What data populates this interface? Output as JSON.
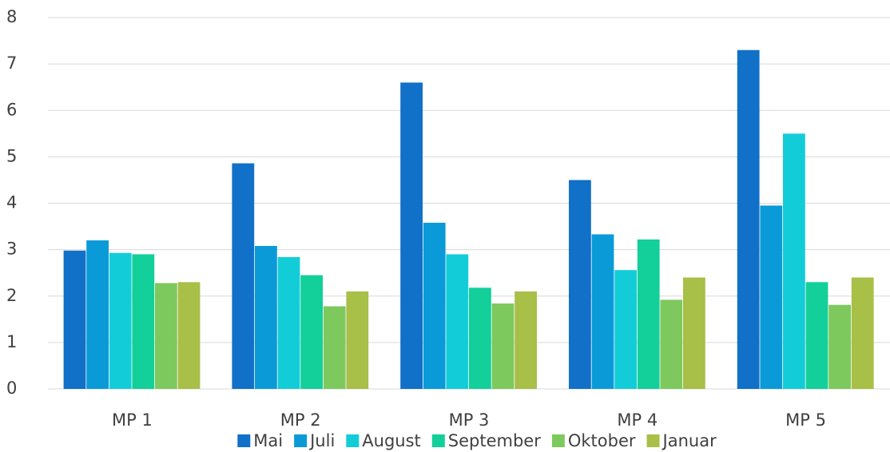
{
  "chart_data": {
    "type": "bar",
    "categories": [
      "MP 1",
      "MP 2",
      "MP 3",
      "MP 4",
      "MP 5"
    ],
    "series": [
      {
        "name": "Mai",
        "color": "#1170c8",
        "values": [
          2.98,
          4.86,
          6.6,
          4.5,
          7.3
        ]
      },
      {
        "name": "Juli",
        "color": "#0a9ad8",
        "values": [
          3.2,
          3.08,
          3.58,
          3.33,
          3.95
        ]
      },
      {
        "name": "August",
        "color": "#12cdd8",
        "values": [
          2.93,
          2.84,
          2.9,
          2.56,
          5.5
        ]
      },
      {
        "name": "September",
        "color": "#13cf9a",
        "values": [
          2.9,
          2.45,
          2.18,
          3.22,
          2.3
        ]
      },
      {
        "name": "Oktober",
        "color": "#7dc95e",
        "values": [
          2.28,
          1.78,
          1.84,
          1.92,
          1.81
        ]
      },
      {
        "name": "Januar",
        "color": "#a8bf48",
        "values": [
          2.3,
          2.1,
          2.1,
          2.4,
          2.4
        ]
      }
    ],
    "ylim": [
      0,
      8
    ],
    "yticks": [
      0,
      1,
      2,
      3,
      4,
      5,
      6,
      7,
      8
    ],
    "grid": true,
    "legend": "bottom"
  }
}
